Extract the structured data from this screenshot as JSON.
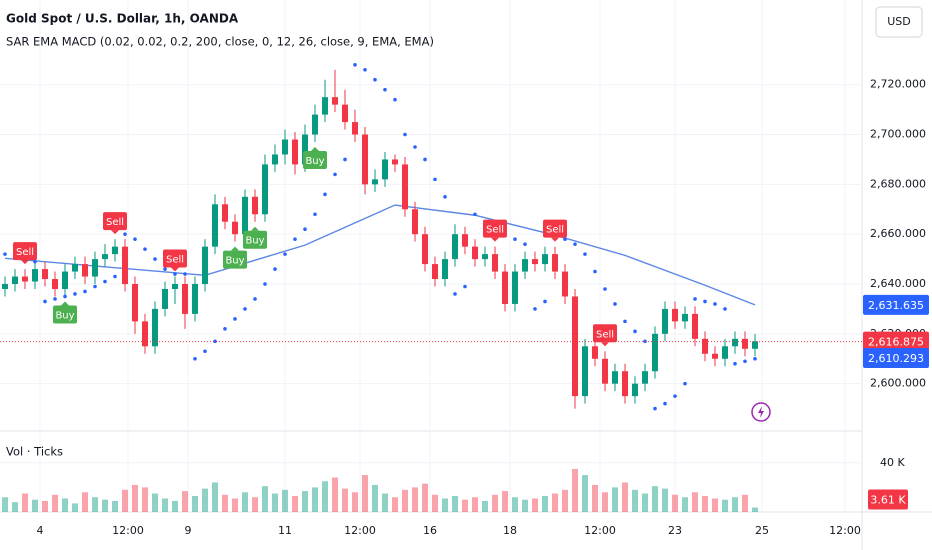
{
  "chart_data": {
    "type": "candlestick",
    "title": "Gold Spot / U.S. Dollar, 1h, OANDA",
    "subtitle": "SAR EMA MACD (0.02, 0.02, 0.2, 200, close, 0, 12, 26, close, 9, EMA, EMA)",
    "currency": "USD",
    "volume_title": "Vol · Ticks",
    "up_color": "#089981",
    "down_color": "#f23645",
    "grid": true,
    "xlim": [
      -0.5,
      85.7
    ],
    "xticks": [
      {
        "value": 3.5,
        "label": "4"
      },
      {
        "value": 12.3,
        "label": "12:00"
      },
      {
        "value": 18.3,
        "label": "9"
      },
      {
        "value": 28,
        "label": "11"
      },
      {
        "value": 35.5,
        "label": "12:00"
      },
      {
        "value": 42.5,
        "label": "16"
      },
      {
        "value": 50.5,
        "label": "18"
      },
      {
        "value": 59.5,
        "label": "12:00"
      },
      {
        "value": 67,
        "label": "23"
      },
      {
        "value": 75.7,
        "label": "25"
      },
      {
        "value": 84,
        "label": "12:00"
      }
    ],
    "ylim": [
      2581,
      2754
    ],
    "yticks": [
      {
        "value": 2600,
        "label": "2,600.000"
      },
      {
        "value": 2620,
        "label": "2,620.000"
      },
      {
        "value": 2640,
        "label": "2,640.000"
      },
      {
        "value": 2660,
        "label": "2,660.000"
      },
      {
        "value": 2680,
        "label": "2,680.000"
      },
      {
        "value": 2700,
        "label": "2,700.000"
      },
      {
        "value": 2720,
        "label": "2,720.000"
      }
    ],
    "ohlc": [
      [
        2638,
        2643,
        2635,
        2640
      ],
      [
        2640,
        2646,
        2637,
        2643
      ],
      [
        2643,
        2646,
        2638,
        2641
      ],
      [
        2641,
        2649,
        2638,
        2646
      ],
      [
        2646,
        2649,
        2639,
        2642
      ],
      [
        2642,
        2645,
        2635,
        2638
      ],
      [
        2638,
        2648,
        2635,
        2645
      ],
      [
        2645,
        2651,
        2642,
        2648
      ],
      [
        2648,
        2651,
        2640,
        2643
      ],
      [
        2643,
        2653,
        2640,
        2650
      ],
      [
        2650,
        2656,
        2647,
        2652
      ],
      [
        2652,
        2658,
        2649,
        2655
      ],
      [
        2655,
        2658,
        2637,
        2640
      ],
      [
        2640,
        2643,
        2620,
        2625
      ],
      [
        2625,
        2628,
        2612,
        2615
      ],
      [
        2615,
        2633,
        2612,
        2630
      ],
      [
        2630,
        2641,
        2627,
        2638
      ],
      [
        2638,
        2643,
        2632,
        2640
      ],
      [
        2640,
        2643,
        2622,
        2628
      ],
      [
        2628,
        2643,
        2625,
        2640
      ],
      [
        2640,
        2658,
        2637,
        2655
      ],
      [
        2655,
        2676,
        2652,
        2672
      ],
      [
        2672,
        2675,
        2662,
        2665
      ],
      [
        2665,
        2668,
        2657,
        2660
      ],
      [
        2660,
        2678,
        2657,
        2675
      ],
      [
        2675,
        2678,
        2665,
        2668
      ],
      [
        2668,
        2692,
        2665,
        2688
      ],
      [
        2688,
        2696,
        2685,
        2692
      ],
      [
        2692,
        2702,
        2688,
        2698
      ],
      [
        2698,
        2701,
        2684,
        2688
      ],
      [
        2688,
        2704,
        2685,
        2700
      ],
      [
        2700,
        2712,
        2697,
        2708
      ],
      [
        2708,
        2722,
        2705,
        2715
      ],
      [
        2715,
        2726,
        2709,
        2712
      ],
      [
        2712,
        2718,
        2702,
        2705
      ],
      [
        2705,
        2710,
        2697,
        2700
      ],
      [
        2700,
        2703,
        2676,
        2680
      ],
      [
        2680,
        2686,
        2677,
        2682
      ],
      [
        2682,
        2693,
        2679,
        2690
      ],
      [
        2690,
        2692,
        2685,
        2688
      ],
      [
        2688,
        2691,
        2667,
        2670
      ],
      [
        2670,
        2673,
        2657,
        2660
      ],
      [
        2660,
        2663,
        2645,
        2648
      ],
      [
        2648,
        2651,
        2639,
        2642
      ],
      [
        2642,
        2653,
        2639,
        2650
      ],
      [
        2650,
        2664,
        2647,
        2660
      ],
      [
        2660,
        2663,
        2652,
        2655
      ],
      [
        2655,
        2658,
        2647,
        2650
      ],
      [
        2650,
        2655,
        2647,
        2652
      ],
      [
        2652,
        2655,
        2642,
        2645
      ],
      [
        2645,
        2648,
        2629,
        2632
      ],
      [
        2632,
        2648,
        2629,
        2645
      ],
      [
        2645,
        2653,
        2642,
        2650
      ],
      [
        2650,
        2653,
        2645,
        2648
      ],
      [
        2648,
        2655,
        2645,
        2652
      ],
      [
        2652,
        2655,
        2642,
        2645
      ],
      [
        2645,
        2648,
        2632,
        2635
      ],
      [
        2635,
        2638,
        2590,
        2595
      ],
      [
        2595,
        2618,
        2592,
        2615
      ],
      [
        2615,
        2618,
        2607,
        2610
      ],
      [
        2610,
        2613,
        2597,
        2600
      ],
      [
        2600,
        2608,
        2597,
        2605
      ],
      [
        2605,
        2608,
        2592,
        2595
      ],
      [
        2595,
        2603,
        2592,
        2600
      ],
      [
        2600,
        2608,
        2597,
        2605
      ],
      [
        2605,
        2623,
        2602,
        2620
      ],
      [
        2620,
        2633,
        2617,
        2630
      ],
      [
        2630,
        2633,
        2622,
        2625
      ],
      [
        2625,
        2631,
        2622,
        2628
      ],
      [
        2628,
        2631,
        2615,
        2618
      ],
      [
        2618,
        2621,
        2609,
        2612
      ],
      [
        2612,
        2615,
        2607,
        2610
      ],
      [
        2610,
        2618,
        2607,
        2615
      ],
      [
        2615,
        2621,
        2612,
        2618
      ],
      [
        2618,
        2621,
        2611,
        2614
      ],
      [
        2614,
        2620,
        2611,
        2617
      ]
    ],
    "sar": [
      2652,
      2651,
      2650,
      2649,
      2633,
      2634,
      2635,
      2636,
      2637,
      2639,
      2641,
      2643,
      2660,
      2658,
      2654,
      2650,
      2646,
      2644,
      2644,
      2610,
      2613,
      2617,
      2622,
      2626,
      2630,
      2634,
      2640,
      2646,
      2652,
      2658,
      2662,
      2668,
      2676,
      2684,
      2690,
      2728,
      2726,
      2722,
      2718,
      2714,
      2700,
      2695,
      2690,
      2682,
      2675,
      2636,
      2639,
      2668,
      2665,
      2662,
      2660,
      2658,
      2656,
      2630,
      2633,
      2660,
      2658,
      2656,
      2652,
      2645,
      2638,
      2632,
      2625,
      2621,
      2617,
      2590,
      2592,
      2595,
      2600,
      2634,
      2633,
      2632,
      2630,
      2608,
      2609,
      2610
    ],
    "sar_color": "#2962ff",
    "ema": {
      "color": "#5b86e5",
      "x": [
        0,
        20,
        30,
        39,
        47,
        55,
        62,
        70,
        75
      ],
      "values": [
        2650.3,
        2643.5,
        2655.6,
        2671.7,
        2667.6,
        2659.6,
        2651.5,
        2639.5,
        2631.635
      ]
    },
    "signals": [
      {
        "label": "Sell",
        "x": 2,
        "color": "#f23645"
      },
      {
        "label": "Buy",
        "x": 6,
        "color": "#4caf50"
      },
      {
        "label": "Sell",
        "x": 11,
        "color": "#f23645"
      },
      {
        "label": "Sell",
        "x": 17,
        "color": "#f23645"
      },
      {
        "label": "Buy",
        "x": 23,
        "color": "#4caf50"
      },
      {
        "label": "Buy",
        "x": 25,
        "color": "#4caf50"
      },
      {
        "label": "Buy",
        "x": 31,
        "color": "#4caf50"
      },
      {
        "label": "Sell",
        "x": 49,
        "color": "#f23645"
      },
      {
        "label": "Sell",
        "x": 55,
        "color": "#f23645"
      },
      {
        "label": "Sell",
        "x": 60,
        "color": "#f23645"
      }
    ],
    "price_badges": [
      {
        "value": 2631.635,
        "label": "2,631.635",
        "color": "#2962ff"
      },
      {
        "value": 2616.875,
        "label": "2,616.875",
        "color": "#f23645"
      },
      {
        "value": 2610.293,
        "label": "2,610.293",
        "color": "#2962ff"
      }
    ],
    "current_price": 2616.875,
    "volume": [
      12000,
      8000,
      15000,
      10000,
      9000,
      14000,
      11000,
      7000,
      16000,
      12000,
      10000,
      9000,
      18000,
      22000,
      20000,
      15000,
      11000,
      9000,
      17000,
      13000,
      19000,
      24000,
      14000,
      11000,
      16000,
      12000,
      21000,
      15000,
      18000,
      13000,
      17000,
      20000,
      25000,
      28000,
      19000,
      16000,
      30000,
      22000,
      15000,
      12000,
      18000,
      20000,
      23000,
      14000,
      11000,
      13000,
      10000,
      12000,
      9000,
      14000,
      17000,
      12000,
      10000,
      11000,
      13000,
      15000,
      18000,
      35000,
      30000,
      22000,
      16000,
      20000,
      24000,
      18000,
      15000,
      21000,
      19000,
      14000,
      12000,
      16000,
      13000,
      11000,
      10000,
      12000,
      14000,
      3610
    ],
    "volume_ylim": [
      0,
      65000
    ],
    "volume_yticks": [
      {
        "value": 40000,
        "label": "40 K"
      }
    ],
    "volume_badge": {
      "value": 3610,
      "label": "3.61 K",
      "color": "#f23645"
    }
  }
}
